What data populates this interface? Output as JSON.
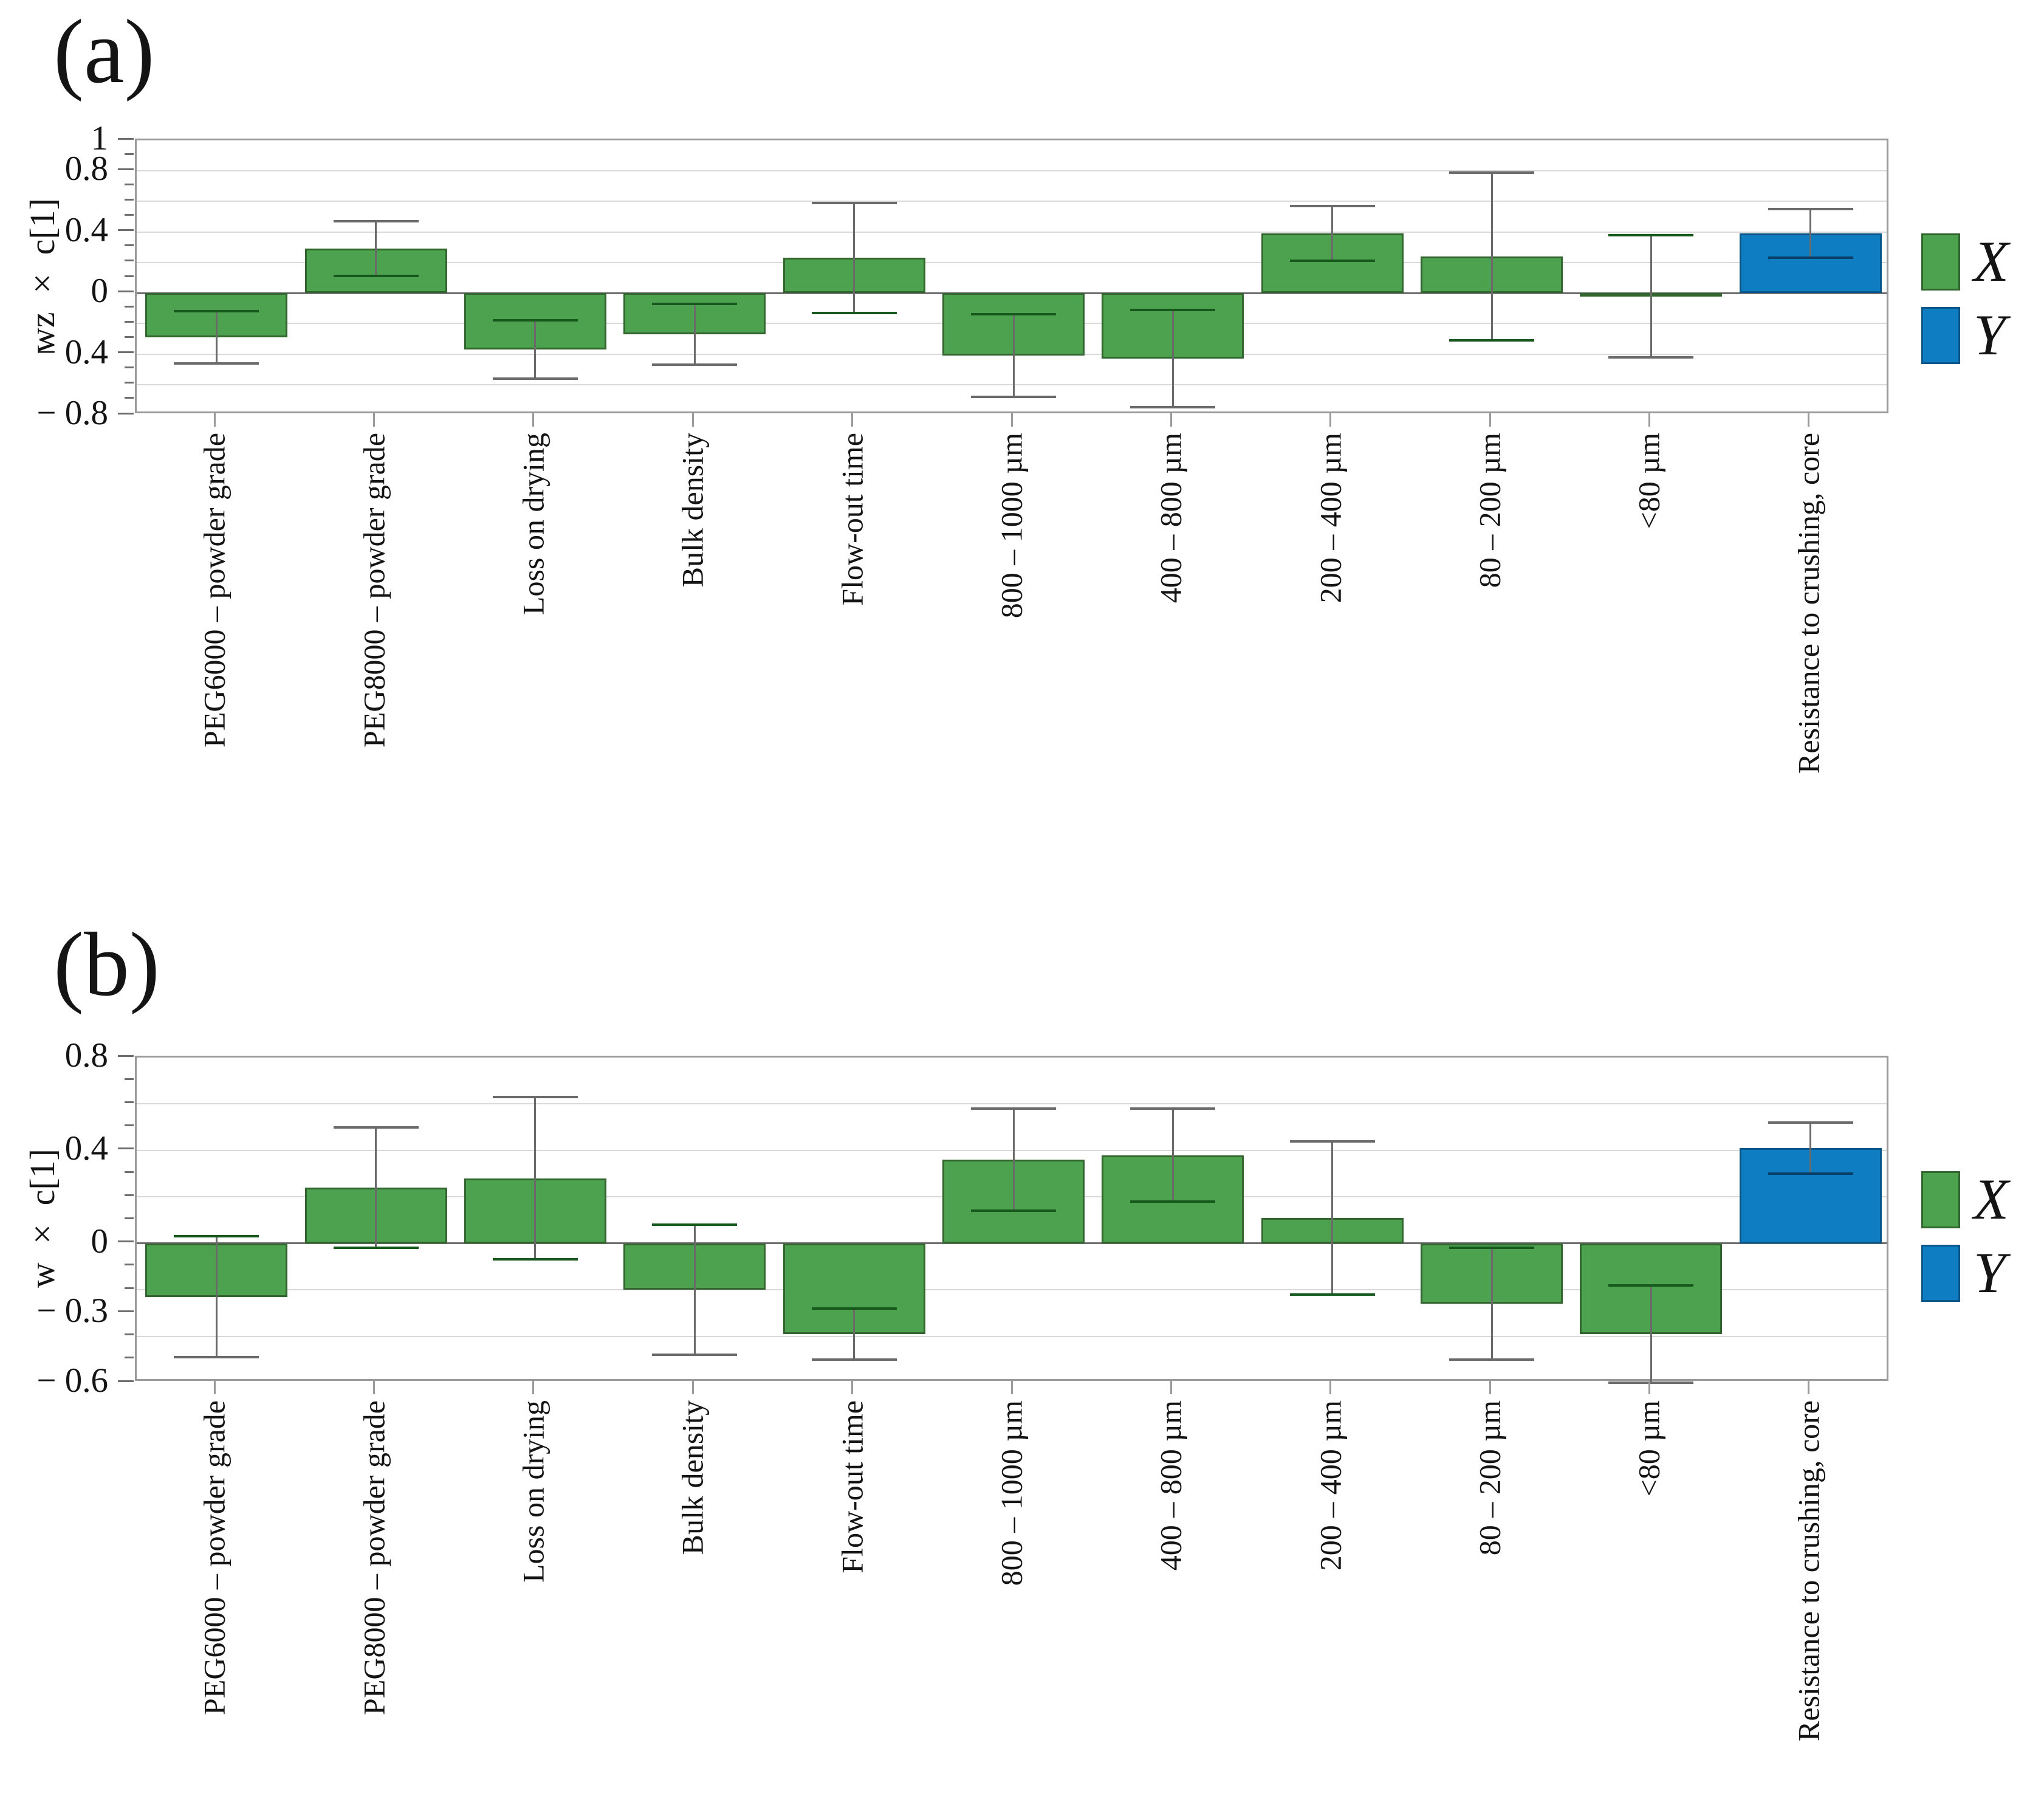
{
  "colors": {
    "x_series": "#4CA24E",
    "x_edge": "#33662F",
    "x_cap": "#17591D",
    "y_series": "#0E7DC2",
    "y_edge": "#0A5688",
    "y_cap": "#083F66",
    "grid": "#D9D9D9",
    "zero_axis": "#6E6E6E",
    "frame": "#9B9B9B",
    "error_bar": "#6A6A6A",
    "text": "#141414"
  },
  "chart_data": [
    {
      "type": "bar",
      "panel": "a",
      "title": "(a)",
      "ylabel": "wz × c[1]",
      "ylim": [
        -0.8,
        1
      ],
      "grid_step": 0.2,
      "tick_step": 0.1,
      "grid_on": true,
      "legend_position": "right",
      "yticks": [
        {
          "label": "1",
          "value": 1
        },
        {
          "label": "0.8",
          "value": 0.8
        },
        {
          "label": "0.4",
          "value": 0.4
        },
        {
          "label": "0",
          "value": 0
        },
        {
          "label": "− 0.4",
          "value": -0.4
        },
        {
          "label": "− 0.8",
          "value": -0.8
        }
      ],
      "categories": [
        "PEG6000 – powder grade",
        "PEG8000 – powder grade",
        "Loss on drying",
        "Bulk density",
        "Flow-out time",
        "800 – 1000 µm",
        "400 – 800 µm",
        "200 – 400 µm",
        "80 – 200 µm",
        "<80 µm",
        "Resistance to crushing, core"
      ],
      "series_of_bar": [
        "X",
        "X",
        "X",
        "X",
        "X",
        "X",
        "X",
        "X",
        "X",
        "X",
        "Y"
      ],
      "values": [
        -0.29,
        0.29,
        -0.37,
        -0.27,
        0.23,
        -0.41,
        -0.43,
        0.39,
        0.24,
        -0.02,
        0.39
      ],
      "errors": [
        0.17,
        0.18,
        0.19,
        0.2,
        0.36,
        0.27,
        0.32,
        0.18,
        0.55,
        0.4,
        0.16
      ],
      "legend": [
        "X",
        "Y"
      ]
    },
    {
      "type": "bar",
      "panel": "b",
      "title": "(b)",
      "ylabel": "w × c[1]",
      "ylim": [
        -0.6,
        0.8
      ],
      "grid_step": 0.2,
      "tick_step": 0.1,
      "grid_on": true,
      "legend_position": "right",
      "yticks": [
        {
          "label": "0.8",
          "value": 0.8
        },
        {
          "label": "0.4",
          "value": 0.4
        },
        {
          "label": "0",
          "value": 0
        },
        {
          "label": "− 0.3",
          "value": -0.3
        },
        {
          "label": "− 0.6",
          "value": -0.6
        }
      ],
      "categories": [
        "PEG6000 – powder grade",
        "PEG8000 – powder grade",
        "Loss on drying",
        "Bulk density",
        "Flow-out time",
        "800 – 1000 µm",
        "400 – 800 µm",
        "200 – 400 µm",
        "80 – 200 µm",
        "<80 µm",
        "Resistance to crushing, core"
      ],
      "series_of_bar": [
        "X",
        "X",
        "X",
        "X",
        "X",
        "X",
        "X",
        "X",
        "X",
        "X",
        "Y"
      ],
      "values": [
        -0.23,
        0.24,
        0.28,
        -0.2,
        -0.39,
        0.36,
        0.38,
        0.11,
        -0.26,
        -0.39,
        0.41
      ],
      "errors": [
        0.26,
        0.26,
        0.35,
        0.28,
        0.11,
        0.22,
        0.2,
        0.33,
        0.24,
        0.21,
        0.11
      ],
      "legend": [
        "X",
        "Y"
      ]
    }
  ]
}
